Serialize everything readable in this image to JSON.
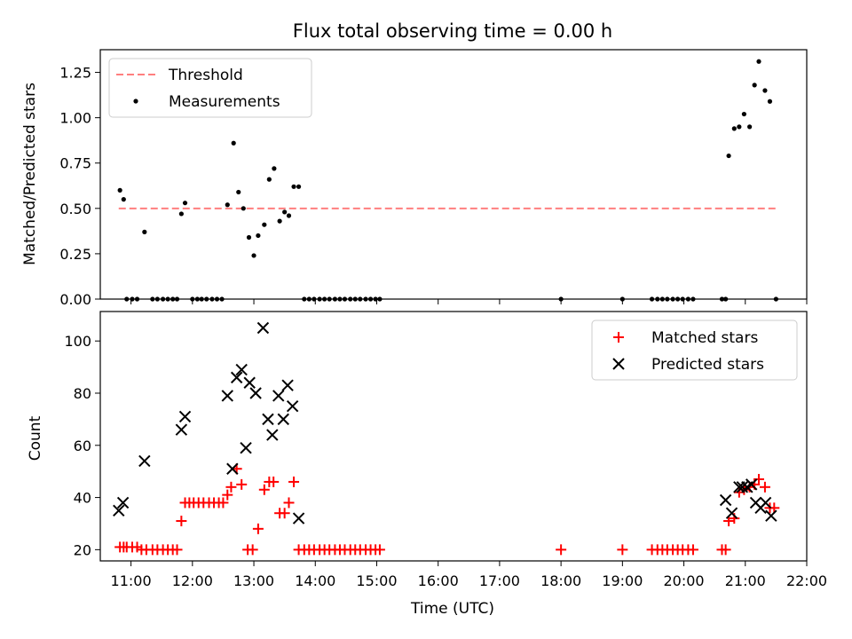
{
  "chart_data": [
    {
      "type": "scatter",
      "title": "Flux total observing time = 0.00 h",
      "xlabel": "",
      "ylabel": "Matched/Predicted stars",
      "ylim": [
        0.0,
        1.375
      ],
      "yticks": [
        "0.00",
        "0.25",
        "0.50",
        "0.75",
        "1.00",
        "1.25"
      ],
      "legend_position": "upper left",
      "series": [
        {
          "name": "Threshold",
          "kind": "dashed-line",
          "color": "#ff7f7f",
          "points": [
            [
              10.8,
              0.5
            ],
            [
              21.5,
              0.5
            ]
          ]
        },
        {
          "name": "Measurements",
          "kind": "dot",
          "color": "#000000",
          "points": [
            [
              10.82,
              0.6
            ],
            [
              10.88,
              0.55
            ],
            [
              11.22,
              0.37
            ],
            [
              11.82,
              0.47
            ],
            [
              11.88,
              0.53
            ],
            [
              12.57,
              0.52
            ],
            [
              12.67,
              0.86
            ],
            [
              12.75,
              0.59
            ],
            [
              12.83,
              0.5
            ],
            [
              12.92,
              0.34
            ],
            [
              13.0,
              0.24
            ],
            [
              13.07,
              0.35
            ],
            [
              13.17,
              0.41
            ],
            [
              13.25,
              0.66
            ],
            [
              13.33,
              0.72
            ],
            [
              13.42,
              0.43
            ],
            [
              13.5,
              0.48
            ],
            [
              13.57,
              0.46
            ],
            [
              13.65,
              0.62
            ],
            [
              13.73,
              0.62
            ],
            [
              20.73,
              0.79
            ],
            [
              20.82,
              0.94
            ],
            [
              20.9,
              0.95
            ],
            [
              20.98,
              1.02
            ],
            [
              21.07,
              0.95
            ],
            [
              21.15,
              1.18
            ],
            [
              21.22,
              1.31
            ],
            [
              21.32,
              1.15
            ],
            [
              21.4,
              1.09
            ],
            [
              10.93,
              0.0
            ],
            [
              11.02,
              0.0
            ],
            [
              11.1,
              0.0
            ],
            [
              11.35,
              0.0
            ],
            [
              11.43,
              0.0
            ],
            [
              11.52,
              0.0
            ],
            [
              11.6,
              0.0
            ],
            [
              11.68,
              0.0
            ],
            [
              11.75,
              0.0
            ],
            [
              12.0,
              0.0
            ],
            [
              12.08,
              0.0
            ],
            [
              12.15,
              0.0
            ],
            [
              12.23,
              0.0
            ],
            [
              12.32,
              0.0
            ],
            [
              12.4,
              0.0
            ],
            [
              12.48,
              0.0
            ],
            [
              13.82,
              0.0
            ],
            [
              13.9,
              0.0
            ],
            [
              13.98,
              0.0
            ],
            [
              14.07,
              0.0
            ],
            [
              14.15,
              0.0
            ],
            [
              14.23,
              0.0
            ],
            [
              14.32,
              0.0
            ],
            [
              14.4,
              0.0
            ],
            [
              14.48,
              0.0
            ],
            [
              14.57,
              0.0
            ],
            [
              14.65,
              0.0
            ],
            [
              14.73,
              0.0
            ],
            [
              14.82,
              0.0
            ],
            [
              14.9,
              0.0
            ],
            [
              14.98,
              0.0
            ],
            [
              15.05,
              0.0
            ],
            [
              18.0,
              0.0
            ],
            [
              19.0,
              0.0
            ],
            [
              19.48,
              0.0
            ],
            [
              19.57,
              0.0
            ],
            [
              19.65,
              0.0
            ],
            [
              19.73,
              0.0
            ],
            [
              19.82,
              0.0
            ],
            [
              19.9,
              0.0
            ],
            [
              19.98,
              0.0
            ],
            [
              20.07,
              0.0
            ],
            [
              20.15,
              0.0
            ],
            [
              20.62,
              0.0
            ],
            [
              20.68,
              0.0
            ],
            [
              21.5,
              0.0
            ]
          ]
        }
      ]
    },
    {
      "type": "scatter",
      "title": "",
      "xlabel": "Time (UTC)",
      "ylabel": "Count",
      "xlim": [
        10.5,
        22.0
      ],
      "ylim": [
        15.7,
        111.3
      ],
      "xticks": [
        "11:00",
        "12:00",
        "13:00",
        "14:00",
        "15:00",
        "16:00",
        "17:00",
        "18:00",
        "19:00",
        "20:00",
        "21:00",
        "22:00"
      ],
      "yticks": [
        "20",
        "40",
        "60",
        "80",
        "100"
      ],
      "legend_position": "upper right",
      "series": [
        {
          "name": "Matched stars",
          "kind": "plus",
          "color": "#ff0000",
          "points": [
            [
              10.82,
              21
            ],
            [
              10.88,
              21
            ],
            [
              10.93,
              21
            ],
            [
              11.02,
              21
            ],
            [
              11.1,
              21
            ],
            [
              11.17,
              20
            ],
            [
              11.25,
              20
            ],
            [
              11.35,
              20
            ],
            [
              11.43,
              20
            ],
            [
              11.52,
              20
            ],
            [
              11.6,
              20
            ],
            [
              11.68,
              20
            ],
            [
              11.75,
              20
            ],
            [
              11.82,
              31
            ],
            [
              11.88,
              38
            ],
            [
              11.95,
              38
            ],
            [
              12.02,
              38
            ],
            [
              12.1,
              38
            ],
            [
              12.18,
              38
            ],
            [
              12.27,
              38
            ],
            [
              12.35,
              38
            ],
            [
              12.43,
              38
            ],
            [
              12.5,
              38
            ],
            [
              12.57,
              41
            ],
            [
              12.63,
              44
            ],
            [
              12.72,
              51
            ],
            [
              12.8,
              45
            ],
            [
              12.9,
              20
            ],
            [
              12.98,
              20
            ],
            [
              13.07,
              28
            ],
            [
              13.17,
              43
            ],
            [
              13.25,
              46
            ],
            [
              13.32,
              46
            ],
            [
              13.42,
              34
            ],
            [
              13.5,
              34
            ],
            [
              13.57,
              38
            ],
            [
              13.65,
              46
            ],
            [
              13.73,
              20
            ],
            [
              13.82,
              20
            ],
            [
              13.9,
              20
            ],
            [
              13.98,
              20
            ],
            [
              14.07,
              20
            ],
            [
              14.15,
              20
            ],
            [
              14.23,
              20
            ],
            [
              14.32,
              20
            ],
            [
              14.4,
              20
            ],
            [
              14.48,
              20
            ],
            [
              14.57,
              20
            ],
            [
              14.65,
              20
            ],
            [
              14.73,
              20
            ],
            [
              14.82,
              20
            ],
            [
              14.9,
              20
            ],
            [
              14.98,
              20
            ],
            [
              15.05,
              20
            ],
            [
              18.0,
              20
            ],
            [
              19.0,
              20
            ],
            [
              19.48,
              20
            ],
            [
              19.57,
              20
            ],
            [
              19.65,
              20
            ],
            [
              19.73,
              20
            ],
            [
              19.82,
              20
            ],
            [
              19.9,
              20
            ],
            [
              19.98,
              20
            ],
            [
              20.07,
              20
            ],
            [
              20.15,
              20
            ],
            [
              20.62,
              20
            ],
            [
              20.68,
              20
            ],
            [
              20.73,
              31
            ],
            [
              20.82,
              32
            ],
            [
              20.9,
              42
            ],
            [
              20.98,
              43
            ],
            [
              21.07,
              44
            ],
            [
              21.15,
              45
            ],
            [
              21.22,
              47
            ],
            [
              21.32,
              44
            ],
            [
              21.4,
              36
            ],
            [
              21.47,
              36
            ]
          ]
        },
        {
          "name": "Predicted stars",
          "kind": "cross",
          "color": "#000000",
          "points": [
            [
              10.8,
              35
            ],
            [
              10.87,
              38
            ],
            [
              11.22,
              54
            ],
            [
              11.82,
              66
            ],
            [
              11.88,
              71
            ],
            [
              12.57,
              79
            ],
            [
              12.65,
              51
            ],
            [
              12.72,
              86
            ],
            [
              12.8,
              89
            ],
            [
              12.87,
              59
            ],
            [
              12.93,
              84
            ],
            [
              13.03,
              80
            ],
            [
              13.15,
              105
            ],
            [
              13.23,
              70
            ],
            [
              13.3,
              64
            ],
            [
              13.4,
              79
            ],
            [
              13.48,
              70
            ],
            [
              13.55,
              83
            ],
            [
              13.63,
              75
            ],
            [
              13.73,
              32
            ],
            [
              20.68,
              39
            ],
            [
              20.78,
              34
            ],
            [
              20.9,
              44
            ],
            [
              20.95,
              44
            ],
            [
              21.03,
              44
            ],
            [
              21.1,
              45
            ],
            [
              21.17,
              38
            ],
            [
              21.25,
              36
            ],
            [
              21.33,
              38
            ],
            [
              21.42,
              33
            ]
          ]
        }
      ]
    }
  ]
}
